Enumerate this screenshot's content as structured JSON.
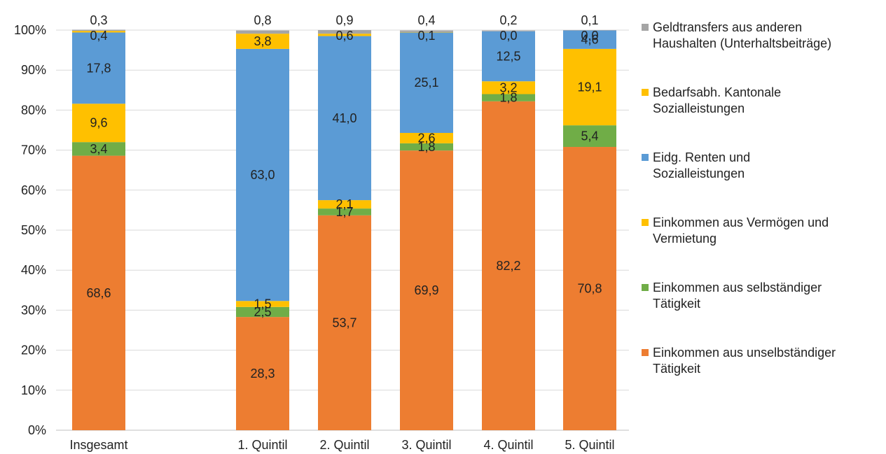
{
  "chart_data": {
    "type": "bar",
    "stacked": true,
    "categories": [
      "Insgesamt",
      "1. Quintil",
      "2. Quintil",
      "3. Quintil",
      "4. Quintil",
      "5. Quintil"
    ],
    "ylim": [
      0,
      100
    ],
    "yticks": [
      "0%",
      "10%",
      "20%",
      "30%",
      "40%",
      "50%",
      "60%",
      "70%",
      "80%",
      "90%",
      "100%"
    ],
    "grid": true,
    "legend_position": "right",
    "series": [
      {
        "name": "Einkommen aus unselbständiger Tätigkeit",
        "color": "#ED7D31",
        "values": [
          68.6,
          28.3,
          53.7,
          69.9,
          82.2,
          70.8
        ],
        "labels": [
          "68,6",
          "28,3",
          "53,7",
          "69,9",
          "82,2",
          "70,8"
        ]
      },
      {
        "name": "Einkommen aus selbständiger Tätigkeit",
        "color": "#70AD47",
        "values": [
          3.4,
          2.5,
          1.7,
          1.8,
          1.8,
          5.4
        ],
        "labels": [
          "3,4",
          "2,5",
          "1,7",
          "1,8",
          "1,8",
          "5,4"
        ]
      },
      {
        "name": "Einkommen aus Vermögen und Vermietung",
        "color": "#FFC000",
        "values": [
          9.6,
          1.5,
          2.1,
          2.6,
          3.2,
          19.1
        ],
        "labels": [
          "9,6",
          "1,5",
          "2,1",
          "2,6",
          "3,2",
          "19,1"
        ]
      },
      {
        "name": "Eidg. Renten und Sozialleistungen",
        "color": "#5B9BD5",
        "values": [
          17.8,
          63.0,
          41.0,
          25.1,
          12.5,
          4.6
        ],
        "labels": [
          "17,8",
          "63,0",
          "41,0",
          "25,1",
          "12,5",
          "4,6"
        ]
      },
      {
        "name": "Bedarfsabh. Kantonale Sozialleistungen",
        "color": "#FFC000",
        "values": [
          0.4,
          3.8,
          0.6,
          0.1,
          0.0,
          0.0
        ],
        "labels": [
          "0,4",
          "3,8",
          "0,6",
          "0,1",
          "0,0",
          "0,0"
        ]
      },
      {
        "name": "Geldtransfers aus anderen Haushalten (Unterhaltsbeiträge)",
        "color": "#A5A5A5",
        "values": [
          0.3,
          0.8,
          0.9,
          0.4,
          0.2,
          0.1
        ],
        "labels": [
          "0,3",
          "0,8",
          "0,9",
          "0,4",
          "0,2",
          "0,1"
        ]
      }
    ]
  },
  "legend": {
    "items": [
      {
        "label_lines": [
          "Geldtransfers aus anderen",
          "Haushalten (Unterhaltsbeiträge)"
        ],
        "color": "#A5A5A5"
      },
      {
        "label_lines": [
          "Bedarfsabh. Kantonale",
          "Sozialleistungen"
        ],
        "color": "#FFC000"
      },
      {
        "label_lines": [
          "Eidg. Renten und",
          "Sozialleistungen"
        ],
        "color": "#5B9BD5"
      },
      {
        "label_lines": [
          "Einkommen aus Vermögen und",
          "Vermietung"
        ],
        "color": "#FFC000"
      },
      {
        "label_lines": [
          "Einkommen aus selbständiger",
          "Tätigkeit"
        ],
        "color": "#70AD47"
      },
      {
        "label_lines": [
          "Einkommen aus unselbständiger",
          "Tätigkeit"
        ],
        "color": "#ED7D31"
      }
    ]
  }
}
